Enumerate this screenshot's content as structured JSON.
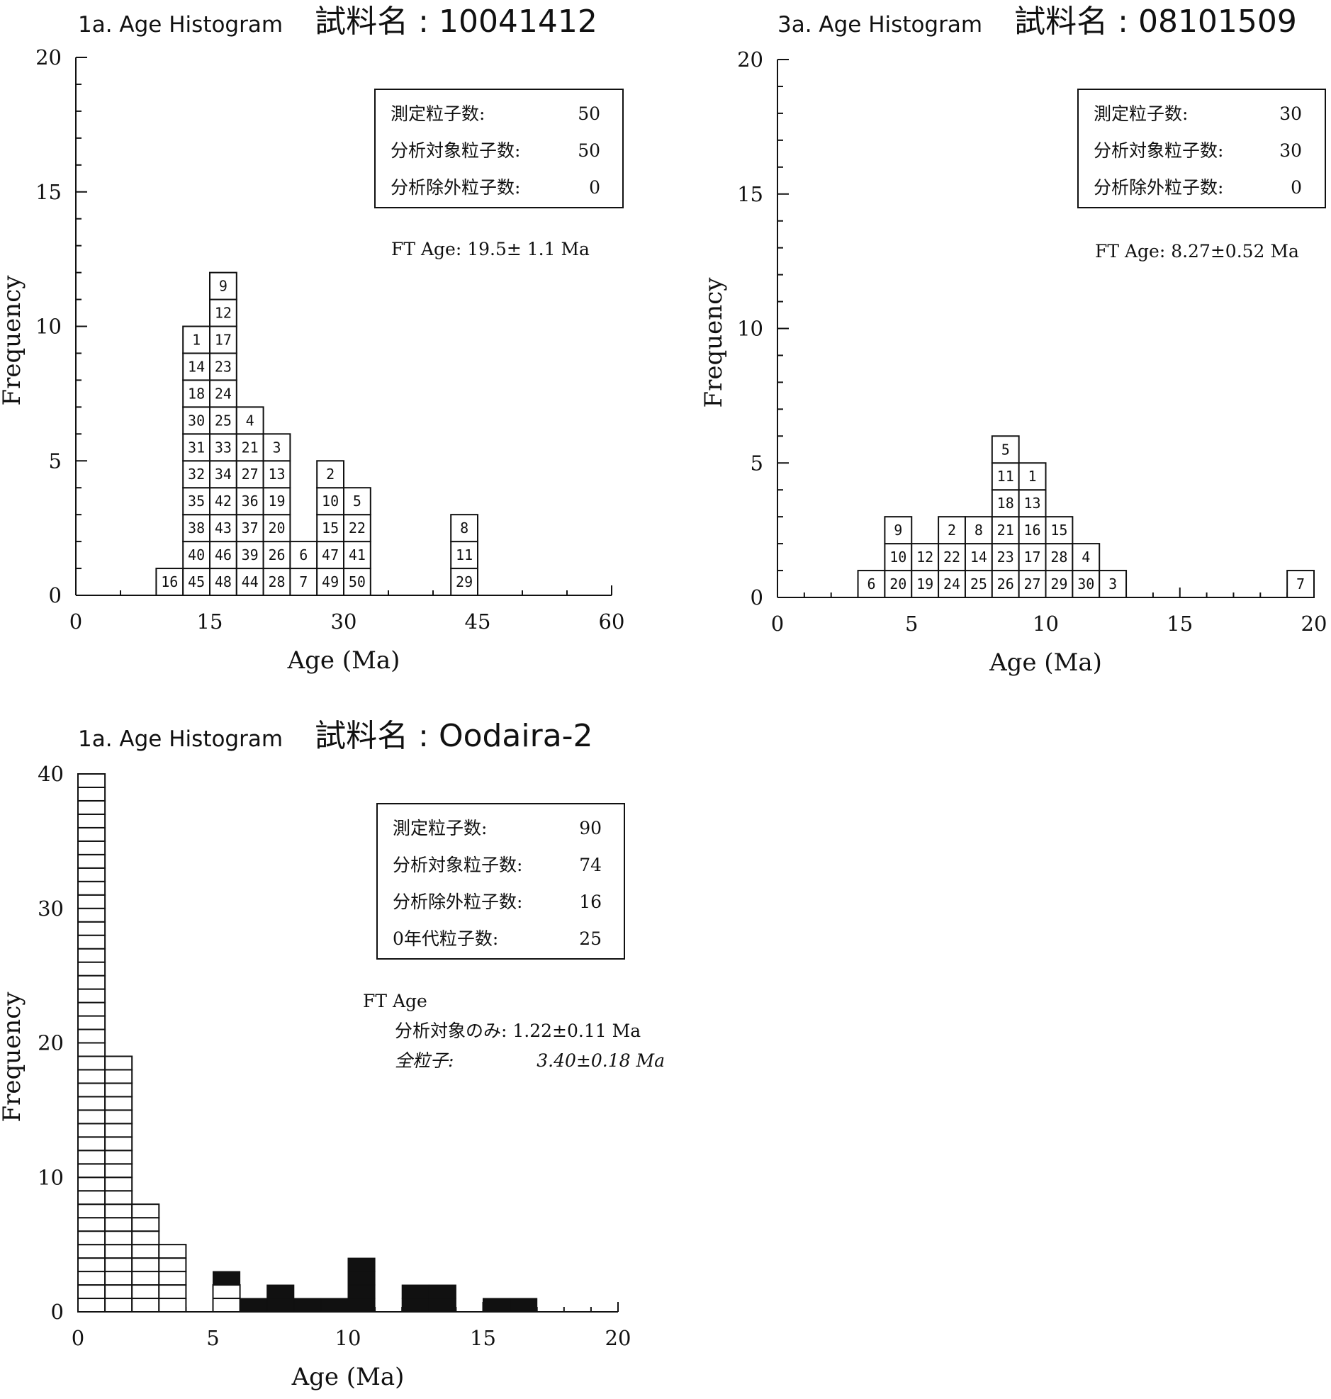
{
  "chart_data": [
    {
      "type": "bar",
      "panel_label": "1a. Age Histogram",
      "sample_name": "試料名 : 10041412",
      "xlabel": "Age (Ma)",
      "ylabel": "Frequency",
      "xlim": [
        0,
        60
      ],
      "ylim": [
        0,
        20
      ],
      "xticks": [
        "0",
        "15",
        "30",
        "45",
        "60"
      ],
      "yticks": [
        "0",
        "5",
        "10",
        "15",
        "20"
      ],
      "bin_width": 3,
      "info_box": [
        {
          "label": "測定粒子数:",
          "value": "50"
        },
        {
          "label": "分析対象粒子数:",
          "value": "50"
        },
        {
          "label": "分析除外粒子数:",
          "value": "0"
        }
      ],
      "ft_age_lines": [
        "FT Age: 19.5± 1.1 Ma"
      ],
      "columns": [
        {
          "x0": 9,
          "grains": [
            "16"
          ]
        },
        {
          "x0": 12,
          "grains": [
            "45",
            "40",
            "38",
            "35",
            "32",
            "31",
            "30",
            "18",
            "14",
            "1"
          ]
        },
        {
          "x0": 15,
          "grains": [
            "48",
            "46",
            "43",
            "42",
            "34",
            "33",
            "25",
            "24",
            "23",
            "17",
            "12",
            "9"
          ]
        },
        {
          "x0": 18,
          "grains": [
            "44",
            "39",
            "37",
            "36",
            "27",
            "21",
            "4"
          ]
        },
        {
          "x0": 21,
          "grains": [
            "28",
            "26",
            "20",
            "19",
            "13",
            "3"
          ]
        },
        {
          "x0": 24,
          "grains": [
            "7",
            "6"
          ]
        },
        {
          "x0": 27,
          "grains": [
            "49",
            "47",
            "15",
            "10",
            "2"
          ]
        },
        {
          "x0": 30,
          "grains": [
            "50",
            "41",
            "22",
            "5"
          ]
        },
        {
          "x0": 42,
          "grains": [
            "29",
            "11",
            "8"
          ]
        }
      ]
    },
    {
      "type": "bar",
      "panel_label": "3a. Age Histogram",
      "sample_name": "試料名 : 08101509",
      "xlabel": "Age (Ma)",
      "ylabel": "Frequency",
      "xlim": [
        0,
        20
      ],
      "ylim": [
        0,
        20
      ],
      "xticks": [
        "0",
        "5",
        "10",
        "15",
        "20"
      ],
      "yticks": [
        "0",
        "5",
        "10",
        "15",
        "20"
      ],
      "bin_width": 1,
      "info_box": [
        {
          "label": "測定粒子数:",
          "value": "30"
        },
        {
          "label": "分析対象粒子数:",
          "value": "30"
        },
        {
          "label": "分析除外粒子数:",
          "value": "0"
        }
      ],
      "ft_age_lines": [
        "FT Age: 8.27±0.52 Ma"
      ],
      "columns": [
        {
          "x0": 3,
          "grains": [
            "6"
          ]
        },
        {
          "x0": 4,
          "grains": [
            "20",
            "10",
            "9"
          ]
        },
        {
          "x0": 5,
          "grains": [
            "19",
            "12"
          ]
        },
        {
          "x0": 6,
          "grains": [
            "24",
            "22",
            "2"
          ]
        },
        {
          "x0": 7,
          "grains": [
            "25",
            "14",
            "8"
          ]
        },
        {
          "x0": 8,
          "grains": [
            "26",
            "23",
            "21",
            "18",
            "11",
            "5"
          ]
        },
        {
          "x0": 9,
          "grains": [
            "27",
            "17",
            "16",
            "13",
            "1"
          ]
        },
        {
          "x0": 10,
          "grains": [
            "29",
            "28",
            "15"
          ]
        },
        {
          "x0": 11,
          "grains": [
            "30",
            "4"
          ]
        },
        {
          "x0": 12,
          "grains": [
            "3"
          ]
        },
        {
          "x0": 19,
          "grains": [
            "7"
          ]
        }
      ]
    },
    {
      "type": "bar",
      "panel_label": "1a. Age Histogram",
      "sample_name": "試料名 : Oodaira-2",
      "xlabel": "Age (Ma)",
      "ylabel": "Frequency",
      "xlim": [
        0,
        20
      ],
      "ylim": [
        0,
        40
      ],
      "xticks": [
        "0",
        "5",
        "10",
        "15",
        "20"
      ],
      "yticks": [
        "0",
        "10",
        "20",
        "30",
        "40"
      ],
      "bin_width": 1,
      "info_box": [
        {
          "label": "測定粒子数:",
          "value": "90"
        },
        {
          "label": "分析対象粒子数:",
          "value": "74"
        },
        {
          "label": "分析除外粒子数:",
          "value": "16"
        },
        {
          "label": "0年代粒子数:",
          "value": "25"
        }
      ],
      "ft_age_lines": [
        "FT Age",
        "分析対象のみ: 1.22±0.11 Ma"
      ],
      "ft_age_all": {
        "label": "全粒子:",
        "value": "3.40±0.18 Ma"
      },
      "series": [
        {
          "name": "",
          "style": "open",
          "bins_x0": [
            0,
            1,
            2,
            3,
            5
          ],
          "values": [
            40,
            19,
            8,
            5,
            2
          ]
        },
        {
          "name": "",
          "style": "filled",
          "bins_x0": [
            5,
            6,
            7,
            8,
            9,
            10,
            12,
            13,
            15,
            16
          ],
          "values": [
            1,
            1,
            2,
            1,
            1,
            4,
            2,
            2,
            1,
            1
          ]
        }
      ]
    }
  ]
}
